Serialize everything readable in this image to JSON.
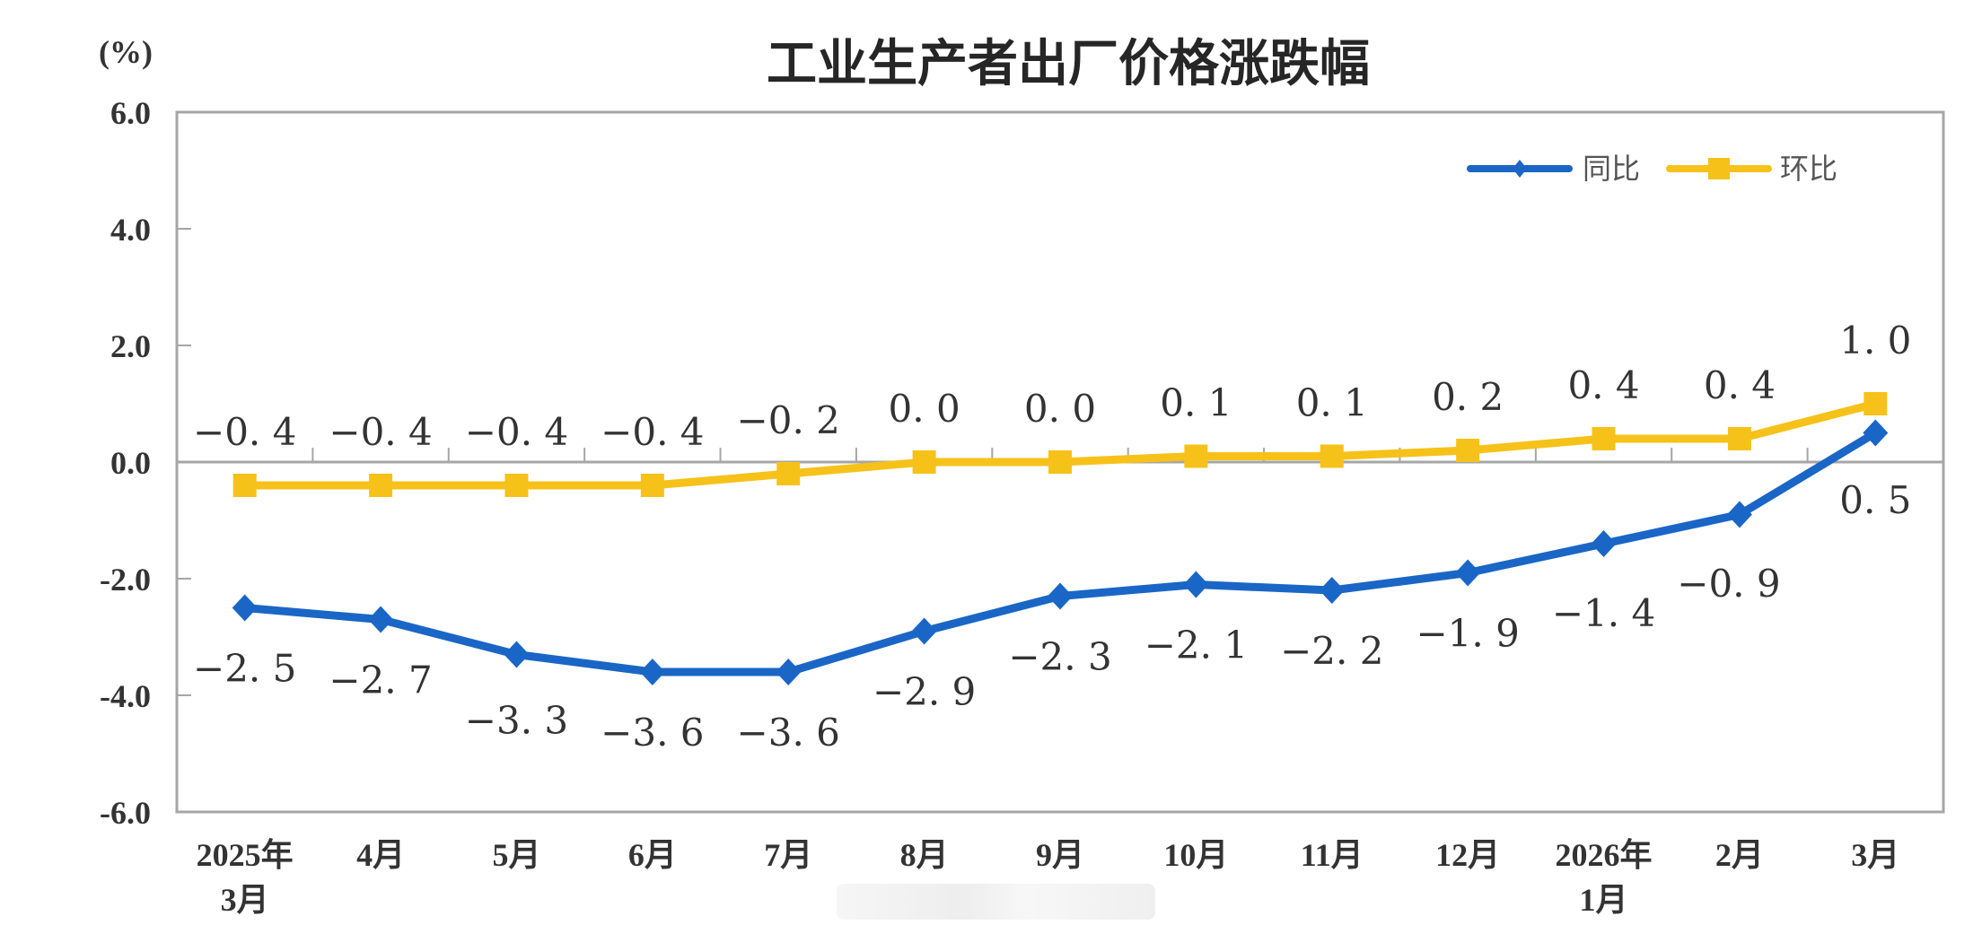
{
  "chart_data": {
    "type": "line",
    "title": "工业生产者出厂价格涨跌幅",
    "ylabel": "(%)",
    "xlabel": "",
    "ylim": [
      -6.0,
      6.0
    ],
    "yticks": [
      "6.0",
      "4.0",
      "2.0",
      "0.0",
      "-2.0",
      "-4.0",
      "-6.0"
    ],
    "categories": [
      "2025年\n3月",
      "4月",
      "5月",
      "6月",
      "7月",
      "8月",
      "9月",
      "10月",
      "11月",
      "12月",
      "2026年\n1月",
      "2月",
      "3月"
    ],
    "category_lines": [
      [
        "2025年",
        "3月"
      ],
      [
        "4月"
      ],
      [
        "5月"
      ],
      [
        "6月"
      ],
      [
        "7月"
      ],
      [
        "8月"
      ],
      [
        "9月"
      ],
      [
        "10月"
      ],
      [
        "11月"
      ],
      [
        "12月"
      ],
      [
        "2026年",
        "1月"
      ],
      [
        "2月"
      ],
      [
        "3月"
      ]
    ],
    "series": [
      {
        "name": "同比",
        "color": "#1a66c6",
        "marker": "diamond",
        "values": [
          -2.5,
          -2.7,
          -3.3,
          -3.6,
          -3.6,
          -2.9,
          -2.3,
          -2.1,
          -2.2,
          -1.9,
          -1.4,
          -0.9,
          0.5
        ]
      },
      {
        "name": "环比",
        "color": "#f6c21a",
        "marker": "square",
        "values": [
          -0.4,
          -0.4,
          -0.4,
          -0.4,
          -0.2,
          0.0,
          0.0,
          0.1,
          0.1,
          0.2,
          0.4,
          0.4,
          1.0
        ]
      }
    ],
    "legend_position": "top-right",
    "grid": false
  }
}
